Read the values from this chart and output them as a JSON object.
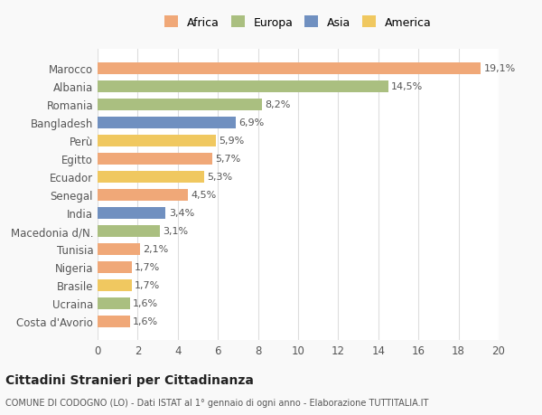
{
  "countries": [
    "Costa d'Avorio",
    "Ucraina",
    "Brasile",
    "Nigeria",
    "Tunisia",
    "Macedonia d/N.",
    "India",
    "Senegal",
    "Ecuador",
    "Egitto",
    "Perù",
    "Bangladesh",
    "Romania",
    "Albania",
    "Marocco"
  ],
  "values": [
    1.6,
    1.6,
    1.7,
    1.7,
    2.1,
    3.1,
    3.4,
    4.5,
    5.3,
    5.7,
    5.9,
    6.9,
    8.2,
    14.5,
    19.1
  ],
  "continents": [
    "Africa",
    "Europa",
    "America",
    "Africa",
    "Africa",
    "Europa",
    "Asia",
    "Africa",
    "America",
    "Africa",
    "America",
    "Asia",
    "Europa",
    "Europa",
    "Africa"
  ],
  "colors": {
    "Africa": "#F0A878",
    "Europa": "#AABF80",
    "Asia": "#7090C0",
    "America": "#F0C860"
  },
  "legend_order": [
    "Africa",
    "Europa",
    "Asia",
    "America"
  ],
  "title": "Cittadini Stranieri per Cittadinanza",
  "subtitle": "COMUNE DI CODOGNO (LO) - Dati ISTAT al 1° gennaio di ogni anno - Elaborazione TUTTITALIA.IT",
  "xlim": [
    0,
    20
  ],
  "xticks": [
    0,
    2,
    4,
    6,
    8,
    10,
    12,
    14,
    16,
    18,
    20
  ],
  "bg_color": "#f9f9f9",
  "bar_bg_color": "#ffffff",
  "grid_color": "#dddddd"
}
